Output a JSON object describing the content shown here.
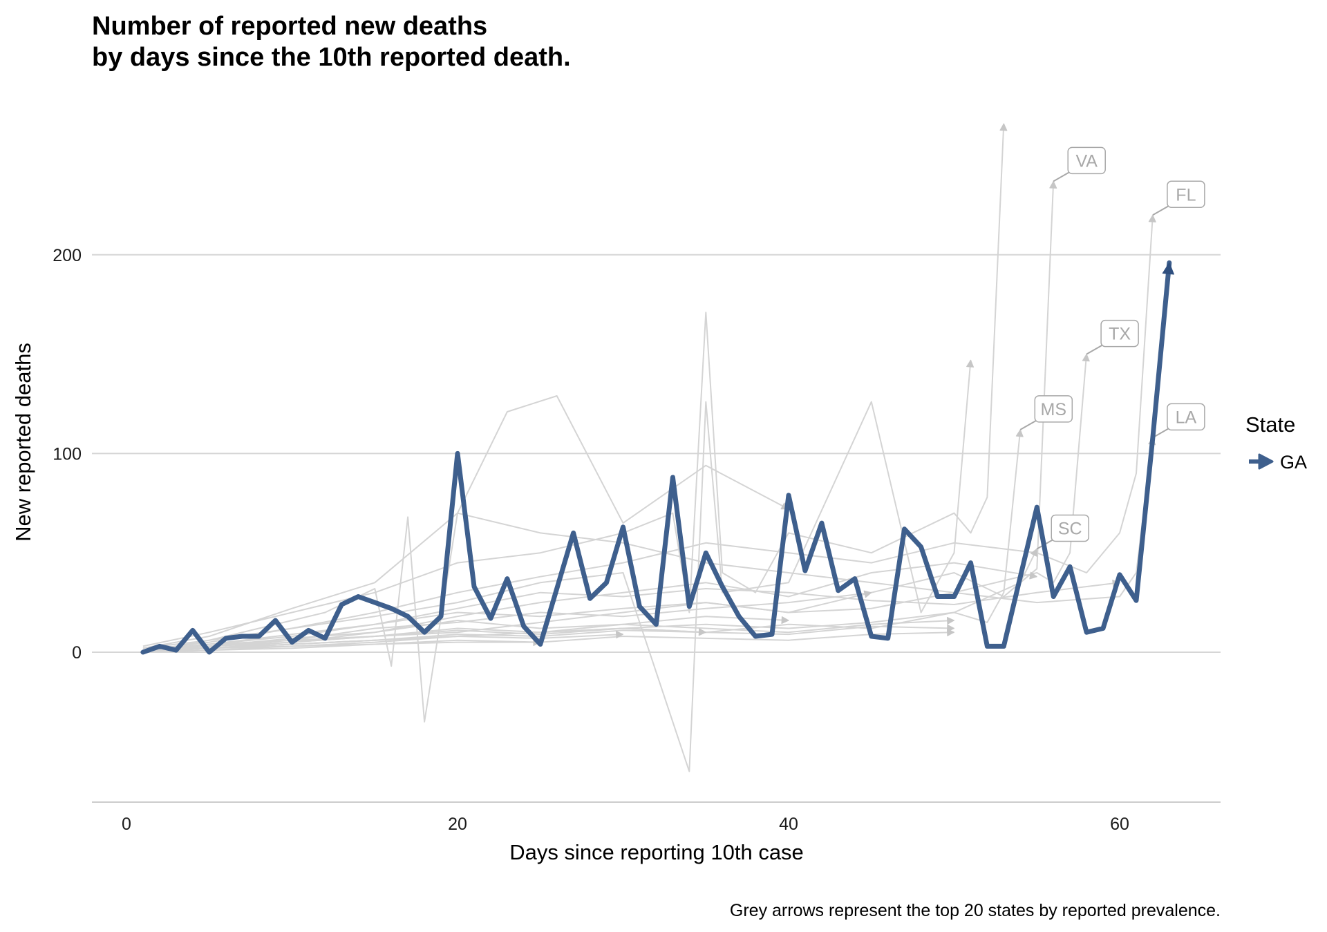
{
  "chart_data": {
    "type": "line",
    "title": "Number of reported new deaths\nby days since the 10th reported death.",
    "xlabel": "Days since reporting 10th case",
    "ylabel": "New reported deaths",
    "caption": "Grey arrows represent the top 20 states by reported prevalence.",
    "xlim": [
      -5,
      66
    ],
    "ylim": [
      -75,
      270
    ],
    "x_ticks": [
      0,
      20,
      40,
      60
    ],
    "y_ticks": [
      0,
      100,
      200
    ],
    "grid": "horizontal major only",
    "legend": {
      "title": "State",
      "position": "right",
      "entries": [
        "GA"
      ]
    },
    "colors": {
      "highlight": "#3e5f8d",
      "background": "#d4d4d4",
      "label": "#a8a8a8"
    },
    "highlight_series": {
      "name": "GA",
      "x": [
        1,
        2,
        3,
        4,
        5,
        6,
        7,
        8,
        9,
        10,
        11,
        12,
        13,
        14,
        15,
        16,
        17,
        18,
        19,
        20,
        21,
        22,
        23,
        24,
        25,
        26,
        27,
        28,
        29,
        30,
        31,
        32,
        33,
        34,
        35,
        36,
        37,
        38,
        39,
        40,
        41,
        42,
        43,
        44,
        45,
        46,
        47,
        48,
        49,
        50,
        51,
        52,
        53,
        54,
        55,
        56,
        57,
        58,
        59,
        60,
        61,
        62,
        63
      ],
      "y": [
        0,
        3,
        1,
        11,
        0,
        7,
        8,
        8,
        16,
        5,
        11,
        7,
        24,
        28,
        25,
        22,
        18,
        10,
        18,
        100,
        33,
        17,
        37,
        13,
        4,
        32,
        60,
        27,
        35,
        63,
        23,
        14,
        88,
        23,
        50,
        33,
        18,
        8,
        9,
        79,
        41,
        65,
        31,
        37,
        8,
        7,
        62,
        53,
        28,
        28,
        45,
        3,
        3,
        38,
        73,
        28,
        43,
        10,
        12,
        39,
        26,
        108,
        196
      ]
    },
    "background_series": [
      {
        "label": "VA",
        "x": [
          1,
          5,
          10,
          15,
          20,
          25,
          30,
          35,
          40,
          45,
          50,
          53,
          54,
          55,
          56
        ],
        "y": [
          1,
          4,
          6,
          12,
          15,
          20,
          18,
          22,
          25,
          30,
          40,
          28,
          35,
          42,
          237
        ]
      },
      {
        "label": "FL",
        "x": [
          1,
          5,
          10,
          15,
          20,
          25,
          30,
          35,
          40,
          45,
          50,
          55,
          58,
          60,
          61,
          62
        ],
        "y": [
          2,
          6,
          12,
          20,
          30,
          38,
          45,
          55,
          50,
          45,
          55,
          50,
          40,
          60,
          90,
          220
        ]
      },
      {
        "label": "TX",
        "x": [
          1,
          5,
          10,
          15,
          20,
          25,
          30,
          35,
          40,
          45,
          50,
          55,
          56,
          57,
          58
        ],
        "y": [
          1,
          3,
          5,
          8,
          10,
          15,
          20,
          25,
          20,
          22,
          30,
          40,
          35,
          50,
          150
        ]
      },
      {
        "label": "MS",
        "x": [
          1,
          5,
          10,
          15,
          20,
          25,
          30,
          35,
          40,
          45,
          50,
          52,
          53,
          54
        ],
        "y": [
          0,
          2,
          4,
          6,
          8,
          10,
          12,
          10,
          14,
          12,
          20,
          15,
          30,
          112
        ]
      },
      {
        "label": "LA",
        "x": [
          1,
          5,
          10,
          15,
          20,
          25,
          30,
          35,
          40,
          45,
          50,
          55,
          60,
          61,
          62
        ],
        "y": [
          2,
          8,
          22,
          35,
          70,
          60,
          55,
          45,
          40,
          35,
          30,
          25,
          28,
          40,
          108
        ]
      },
      {
        "label": "SC",
        "x": [
          1,
          5,
          10,
          15,
          20,
          25,
          30,
          35,
          40,
          45,
          50,
          54,
          55
        ],
        "y": [
          0,
          2,
          3,
          5,
          8,
          10,
          12,
          14,
          12,
          15,
          20,
          35,
          52
        ]
      },
      {
        "label": "",
        "x": [
          1,
          5,
          10,
          15,
          20,
          25,
          30,
          33,
          34,
          35,
          36,
          38,
          40,
          45,
          50,
          51,
          52,
          53
        ],
        "y": [
          3,
          10,
          20,
          30,
          45,
          50,
          60,
          70,
          20,
          171,
          40,
          30,
          60,
          50,
          70,
          60,
          78,
          266
        ]
      },
      {
        "label": "",
        "x": [
          1,
          5,
          10,
          15,
          20,
          25,
          30,
          34,
          35,
          36,
          40,
          45,
          48,
          50,
          51
        ],
        "y": [
          1,
          5,
          12,
          18,
          25,
          35,
          40,
          -60,
          126,
          30,
          35,
          126,
          20,
          50,
          147
        ]
      },
      {
        "label": "",
        "x": [
          1,
          5,
          8,
          12,
          15,
          16,
          17,
          18,
          20,
          23,
          26,
          30,
          35,
          40
        ],
        "y": [
          0,
          6,
          12,
          20,
          32,
          -7,
          68,
          -35,
          70,
          121,
          129,
          65,
          94,
          72
        ]
      },
      {
        "label": "",
        "x": [
          1,
          5,
          10,
          15,
          20,
          25,
          30,
          35,
          40,
          45,
          50
        ],
        "y": [
          0,
          3,
          6,
          8,
          12,
          10,
          14,
          12,
          10,
          14,
          16
        ]
      },
      {
        "label": "",
        "x": [
          1,
          5,
          10,
          15,
          20,
          25,
          30,
          35,
          40,
          45,
          50
        ],
        "y": [
          1,
          2,
          4,
          6,
          9,
          8,
          11,
          10,
          9,
          13,
          12
        ]
      },
      {
        "label": "",
        "x": [
          1,
          5,
          10,
          15,
          20,
          25,
          30,
          35,
          40,
          45,
          50
        ],
        "y": [
          0,
          1,
          3,
          4,
          6,
          5,
          8,
          7,
          6,
          9,
          10
        ]
      },
      {
        "label": "",
        "x": [
          1,
          5,
          10,
          15,
          20,
          25,
          30,
          35,
          40,
          45
        ],
        "y": [
          0,
          4,
          9,
          14,
          20,
          18,
          22,
          25,
          20,
          30
        ]
      },
      {
        "label": "",
        "x": [
          1,
          5,
          10,
          15,
          20,
          25,
          30,
          35,
          40
        ],
        "y": [
          1,
          3,
          7,
          10,
          16,
          12,
          14,
          18,
          16
        ]
      },
      {
        "label": "",
        "x": [
          1,
          5,
          10,
          15,
          20,
          25,
          30,
          35
        ],
        "y": [
          0,
          2,
          5,
          8,
          11,
          9,
          12,
          10
        ]
      },
      {
        "label": "",
        "x": [
          1,
          5,
          10,
          15,
          20,
          25,
          30
        ],
        "y": [
          0,
          2,
          4,
          6,
          8,
          7,
          9
        ]
      },
      {
        "label": "",
        "x": [
          1,
          5,
          10,
          15,
          20,
          25
        ],
        "y": [
          0,
          1,
          2,
          4,
          5,
          5
        ]
      },
      {
        "label": "",
        "x": [
          1,
          5,
          10,
          15,
          20,
          25,
          30,
          35,
          40,
          45,
          50,
          55
        ],
        "y": [
          0,
          3,
          5,
          10,
          18,
          25,
          30,
          35,
          28,
          40,
          45,
          38
        ]
      },
      {
        "label": "",
        "x": [
          1,
          5,
          10,
          15,
          20,
          25,
          30,
          35,
          40,
          45,
          50,
          55,
          60
        ],
        "y": [
          1,
          4,
          8,
          14,
          22,
          30,
          28,
          32,
          30,
          26,
          24,
          30,
          35
        ]
      }
    ]
  }
}
